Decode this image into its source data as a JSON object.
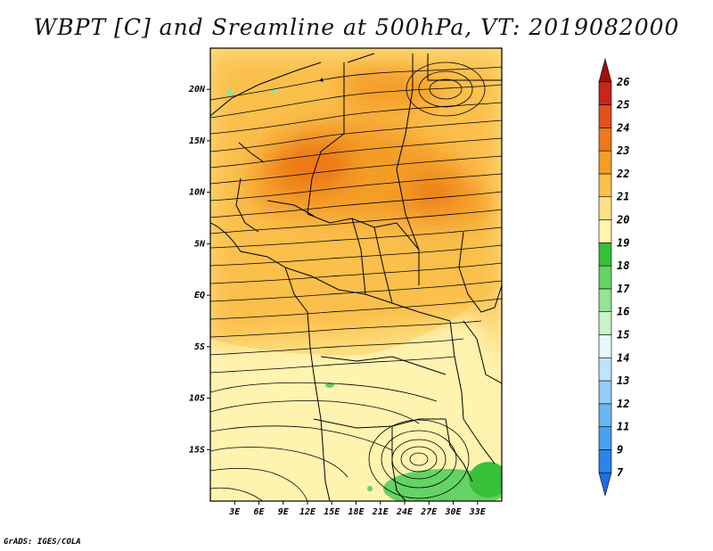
{
  "title": "WBPT [C] and Sreamline at 500hPa, VT: 2019082000",
  "credit": "GrADS: IGES/COLA",
  "map": {
    "lon_range": [
      0,
      36
    ],
    "lat_range": [
      -20,
      24
    ],
    "lat_ticks": [
      {
        "value": 20,
        "label": "20N"
      },
      {
        "value": 15,
        "label": "15N"
      },
      {
        "value": 10,
        "label": "10N"
      },
      {
        "value": 5,
        "label": "5N"
      },
      {
        "value": 0,
        "label": "EQ"
      },
      {
        "value": -5,
        "label": "5S"
      },
      {
        "value": -10,
        "label": "10S"
      },
      {
        "value": -15,
        "label": "15S"
      }
    ],
    "lon_ticks": [
      {
        "value": 3,
        "label": "3E"
      },
      {
        "value": 6,
        "label": "6E"
      },
      {
        "value": 9,
        "label": "9E"
      },
      {
        "value": 12,
        "label": "12E"
      },
      {
        "value": 15,
        "label": "15E"
      },
      {
        "value": 18,
        "label": "18E"
      },
      {
        "value": 21,
        "label": "21E"
      },
      {
        "value": 24,
        "label": "24E"
      },
      {
        "value": 27,
        "label": "27E"
      },
      {
        "value": 30,
        "label": "30E"
      },
      {
        "value": 33,
        "label": "33E"
      }
    ]
  },
  "colorbar": {
    "levels": [
      "7",
      "9",
      "11",
      "12",
      "13",
      "14",
      "15",
      "16",
      "17",
      "18",
      "19",
      "20",
      "21",
      "22",
      "23",
      "24",
      "25",
      "26"
    ],
    "colors": [
      "#1e6ce6",
      "#2a84e8",
      "#4aa0ee",
      "#6ab6f2",
      "#94ccf6",
      "#bce4fa",
      "#e6f8fc",
      "#c8f2c8",
      "#96e296",
      "#64d264",
      "#38c038",
      "#fff3b0",
      "#fde083",
      "#fbbf4b",
      "#f49d25",
      "#ec7818",
      "#e0501c",
      "#c8261a",
      "#a00e0e"
    ]
  }
}
